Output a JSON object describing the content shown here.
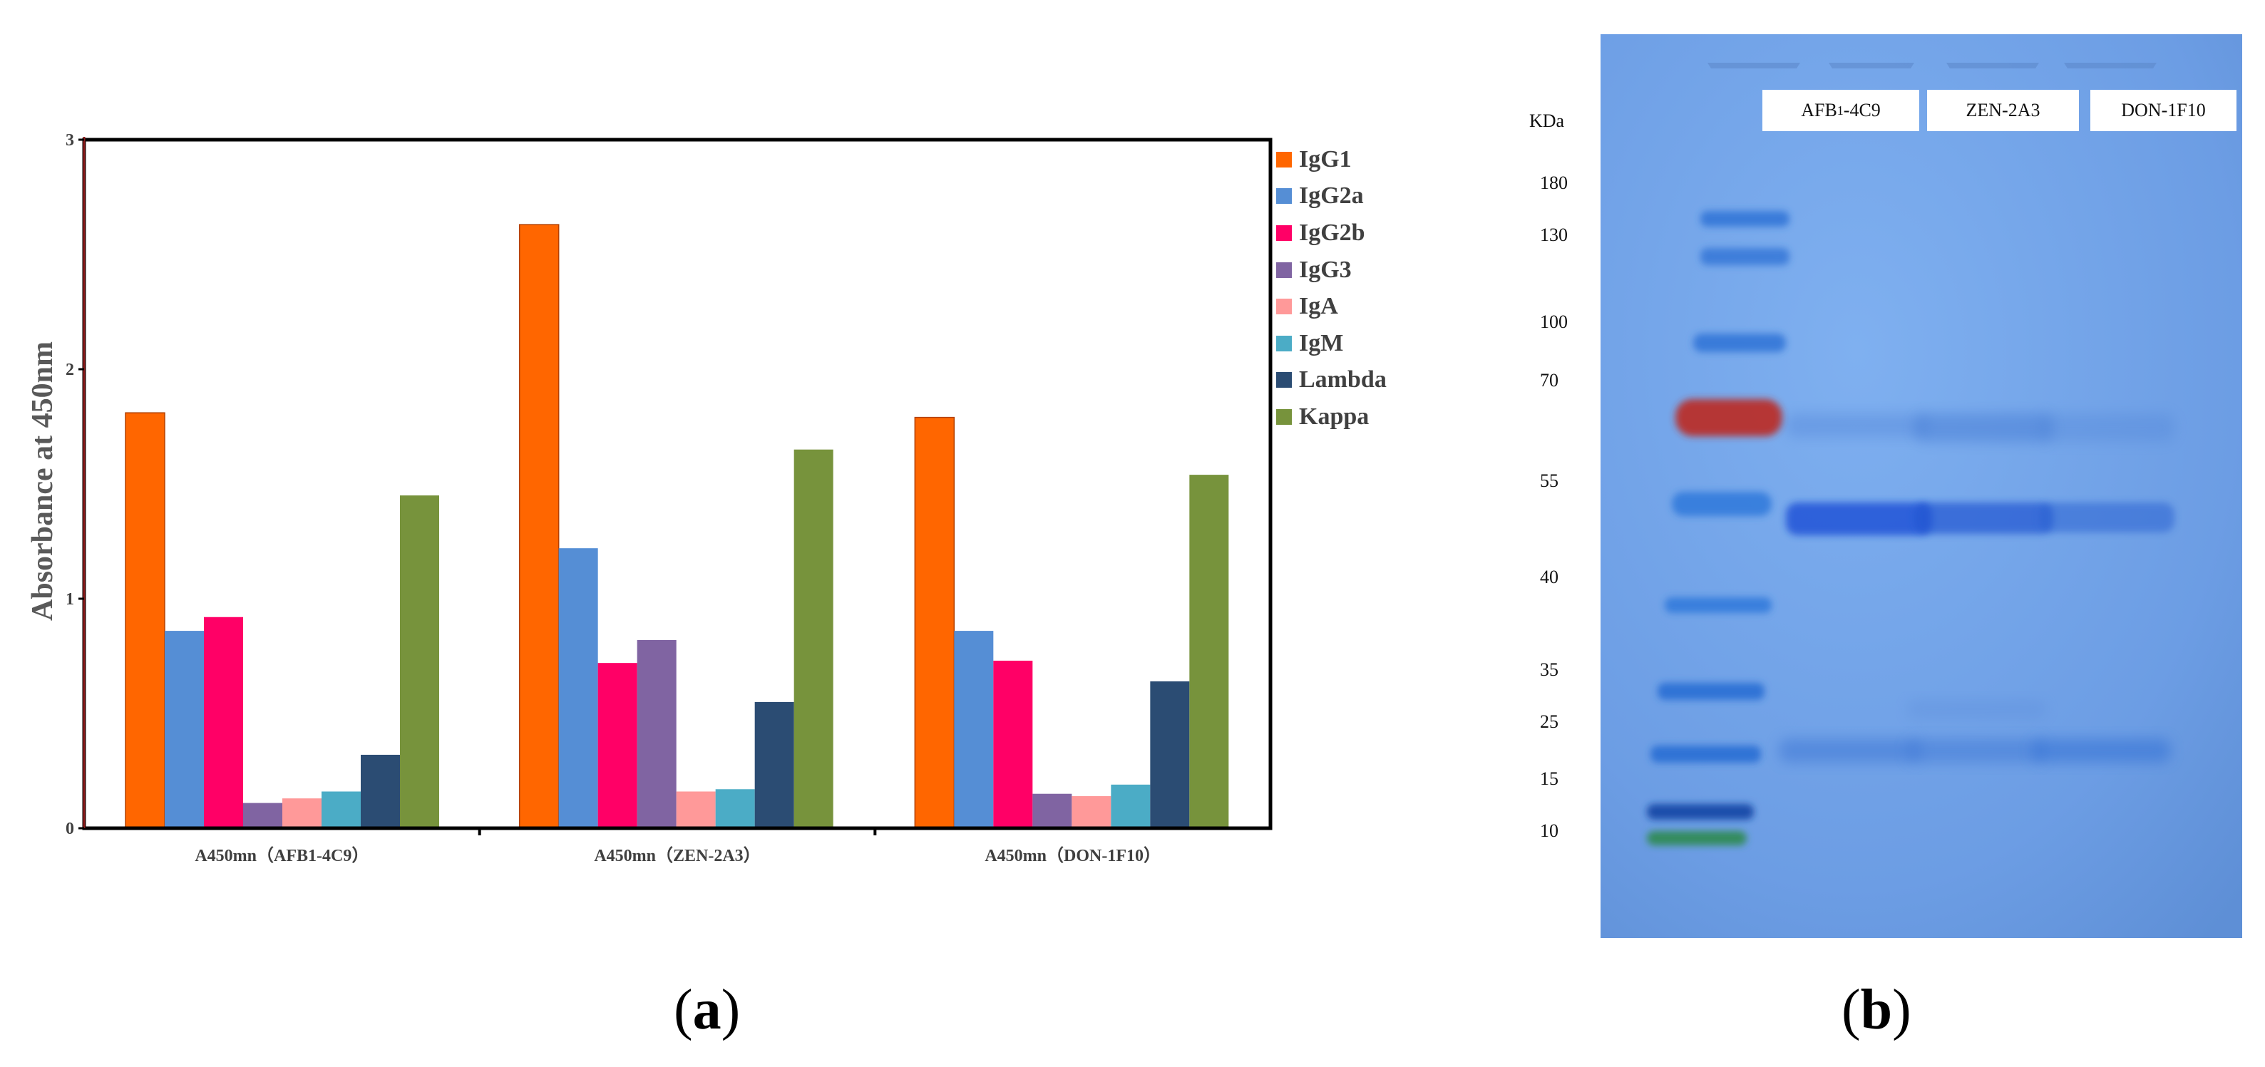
{
  "panel_a_label": "(a)",
  "panel_b_label": "(b)",
  "chart_data": {
    "type": "bar",
    "title": "",
    "ylabel": "Absorbance at 450nm",
    "xlabel": "",
    "ylim": [
      0,
      3
    ],
    "yticks": [
      "0",
      "1",
      "2",
      "3"
    ],
    "categories": [
      "A450mn（AFB1-4C9）",
      "A450mn（ZEN-2A3）",
      "A450mn（DON-1F10）"
    ],
    "legend_position": "right",
    "series": [
      {
        "name": "IgG1",
        "color": "#FF6600",
        "values": [
          1.81,
          2.63,
          1.79
        ]
      },
      {
        "name": "IgG2a",
        "color": "#558ED5",
        "values": [
          0.86,
          1.22,
          0.86
        ]
      },
      {
        "name": "IgG2b",
        "color": "#FF0066",
        "values": [
          0.92,
          0.72,
          0.73
        ]
      },
      {
        "name": "IgG3",
        "color": "#8064A2",
        "values": [
          0.11,
          0.82,
          0.15
        ]
      },
      {
        "name": "IgA",
        "color": "#FF9999",
        "values": [
          0.13,
          0.16,
          0.14
        ]
      },
      {
        "name": "IgM",
        "color": "#4BACC6",
        "values": [
          0.16,
          0.17,
          0.19
        ]
      },
      {
        "name": "Lambda",
        "color": "#2B4C73",
        "values": [
          0.32,
          0.55,
          0.64
        ]
      },
      {
        "name": "Kappa",
        "color": "#77933C",
        "values": [
          1.45,
          1.65,
          1.54
        ]
      }
    ]
  },
  "gel": {
    "unit_label": "KDa",
    "background_color": "#6FA0E6",
    "lane_labels": [
      {
        "prefix": "AFB",
        "subscript": "1",
        "suffix": "-4C9"
      },
      {
        "prefix": "ZEN-2A3",
        "subscript": "",
        "suffix": ""
      },
      {
        "prefix": "DON-1F10",
        "subscript": "",
        "suffix": ""
      }
    ],
    "markers": [
      "180",
      "130",
      "100",
      "70",
      "55",
      "40",
      "35",
      "25",
      "15",
      "10"
    ]
  }
}
